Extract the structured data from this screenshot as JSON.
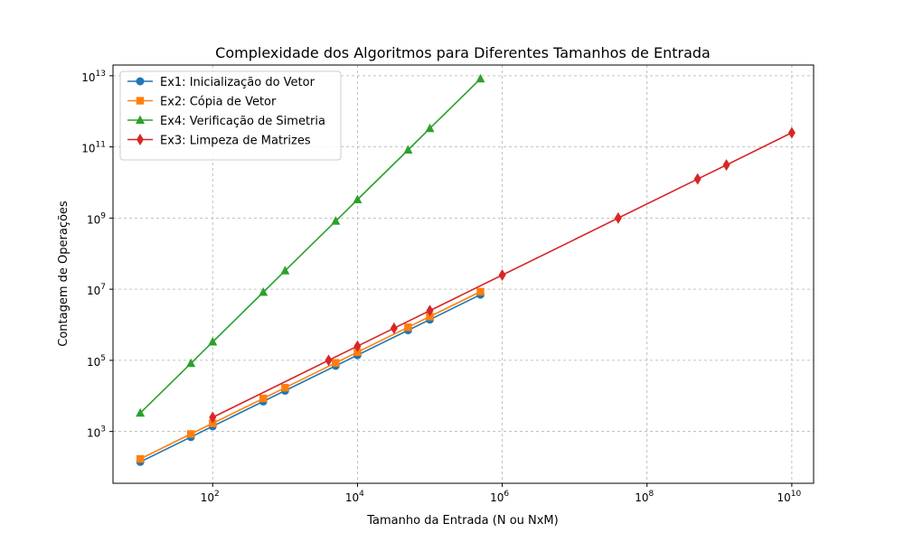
{
  "chart_data": {
    "type": "line",
    "title": "Complexidade dos Algoritmos para Diferentes Tamanhos de Entrada",
    "xlabel": "Tamanho da Entrada (N ou NxM)",
    "ylabel": "Contagem de Operações",
    "xscale": "log",
    "yscale": "log",
    "xlim": [
      4.2,
      20000000000
    ],
    "ylim": [
      35,
      20000000000000
    ],
    "grid": true,
    "legend_position": "top-left",
    "x_ticks": [
      {
        "value": 100,
        "base": "10",
        "exp": "2"
      },
      {
        "value": 10000,
        "base": "10",
        "exp": "4"
      },
      {
        "value": 1000000,
        "base": "10",
        "exp": "6"
      },
      {
        "value": 100000000,
        "base": "10",
        "exp": "8"
      },
      {
        "value": 10000000000,
        "base": "10",
        "exp": "10"
      }
    ],
    "y_ticks": [
      {
        "value": 1000,
        "base": "10",
        "exp": "3"
      },
      {
        "value": 100000,
        "base": "10",
        "exp": "5"
      },
      {
        "value": 10000000,
        "base": "10",
        "exp": "7"
      },
      {
        "value": 1000000000,
        "base": "10",
        "exp": "9"
      },
      {
        "value": 100000000000,
        "base": "10",
        "exp": "11"
      },
      {
        "value": 10000000000000,
        "base": "10",
        "exp": "13"
      }
    ],
    "series": [
      {
        "name": "Ex1: Inicialização do Vetor",
        "color": "#1f77b4",
        "marker": "circle",
        "x": [
          10,
          50,
          100,
          500,
          1000,
          5000,
          10000,
          50000,
          100000,
          500000
        ],
        "y": [
          140,
          700,
          1400,
          7000,
          14000,
          70000,
          140000,
          700000,
          1400000,
          7000000
        ]
      },
      {
        "name": "Ex2: Cópia de Vetor",
        "color": "#ff7f0e",
        "marker": "square",
        "x": [
          10,
          50,
          100,
          500,
          1000,
          5000,
          10000,
          50000,
          100000,
          500000
        ],
        "y": [
          170,
          850,
          1700,
          8500,
          17000,
          85000,
          170000,
          850000,
          1700000,
          8500000
        ]
      },
      {
        "name": "Ex4: Verificação de Simetria",
        "color": "#2ca02c",
        "marker": "triangle",
        "x": [
          10,
          50,
          100,
          500,
          1000,
          5000,
          10000,
          50000,
          100000,
          500000
        ],
        "y": [
          3300,
          82000,
          330000,
          8200000,
          33000000,
          820000000,
          3300000000,
          82000000000,
          330000000000,
          8200000000000
        ]
      },
      {
        "name": "Ex3: Limpeza de Matrizes",
        "color": "#d62728",
        "marker": "diamond",
        "x": [
          100,
          4000,
          10000,
          32000,
          100000,
          1000000,
          40000000,
          500000000,
          1250000000,
          10000000000
        ],
        "y": [
          2500,
          100000,
          250000,
          800000,
          2500000,
          25000000,
          1000000000,
          12500000000,
          31000000000,
          250000000000
        ]
      }
    ]
  }
}
